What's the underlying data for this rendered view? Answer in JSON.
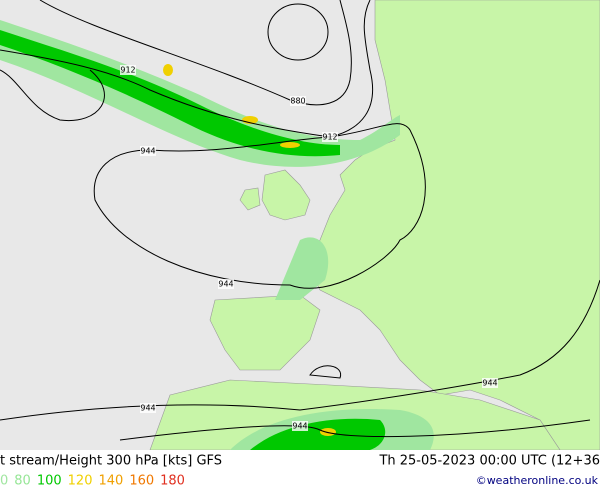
{
  "header": {
    "title": "t stream/Height 300 hPa [kts] GFS",
    "datetime": "Th 25-05-2023 00:00 UTC (12+36"
  },
  "legend": {
    "items": [
      {
        "label": "0",
        "color": "#a0e6a0"
      },
      {
        "label": "80",
        "color": "#96e696"
      },
      {
        "label": "100",
        "color": "#00c800"
      },
      {
        "label": "120",
        "color": "#f0d000"
      },
      {
        "label": "140",
        "color": "#f0a000"
      },
      {
        "label": "160",
        "color": "#f07800"
      },
      {
        "label": "180",
        "color": "#e03020"
      }
    ]
  },
  "contour_labels": [
    "912",
    "880",
    "912",
    "944",
    "944",
    "944",
    "944",
    "944"
  ],
  "credit": "©weatheronline.co.uk"
}
